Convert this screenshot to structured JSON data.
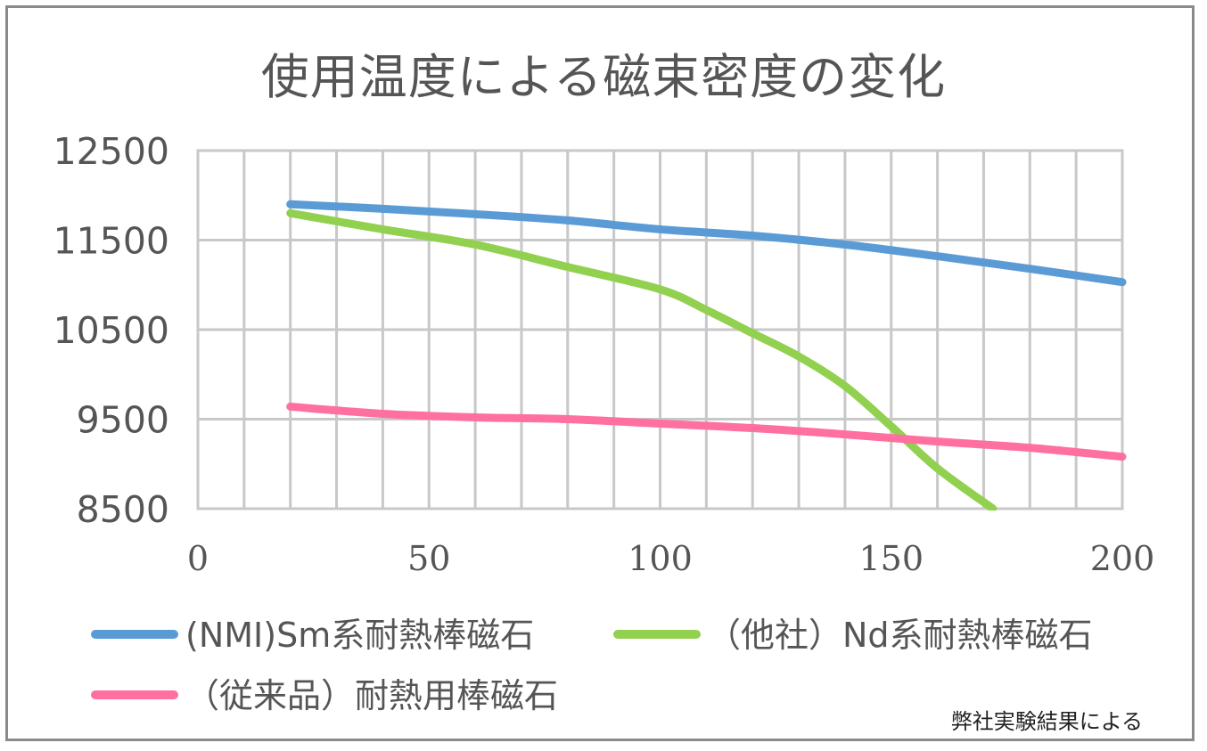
{
  "chart_data": {
    "type": "line",
    "title": "使用温度による磁束密度の変化",
    "xlabel": "",
    "ylabel": "",
    "xlim": [
      0,
      200
    ],
    "ylim": [
      8500,
      12500
    ],
    "x_ticks": [
      "0",
      "50",
      "100",
      "150",
      "200"
    ],
    "y_ticks": [
      "12500",
      "11500",
      "10500",
      "9500",
      "8500"
    ],
    "grid": "on",
    "legend_position": "bottom",
    "series": [
      {
        "name": "(NMI)Sm系耐熱棒磁石",
        "color": "#5b9bd5",
        "x": [
          20,
          40,
          60,
          80,
          100,
          120,
          140,
          160,
          180,
          200
        ],
        "y": [
          11900,
          11850,
          11790,
          11720,
          11620,
          11550,
          11450,
          11320,
          11180,
          11030
        ]
      },
      {
        "name": "（他社）Nd系耐熱棒磁石",
        "color": "#92d050",
        "x": [
          20,
          40,
          60,
          80,
          100,
          110,
          120,
          130,
          140,
          150,
          160,
          172
        ],
        "y": [
          11800,
          11620,
          11450,
          11200,
          10950,
          10720,
          10460,
          10200,
          9870,
          9420,
          8950,
          8500
        ]
      },
      {
        "name": "（従来品）耐熱用棒磁石",
        "color": "#ff6fa0",
        "x": [
          20,
          40,
          60,
          80,
          100,
          120,
          140,
          160,
          180,
          200
        ],
        "y": [
          9640,
          9560,
          9520,
          9500,
          9450,
          9400,
          9330,
          9250,
          9180,
          9080
        ]
      }
    ]
  },
  "footnote": "弊社実験結果による"
}
